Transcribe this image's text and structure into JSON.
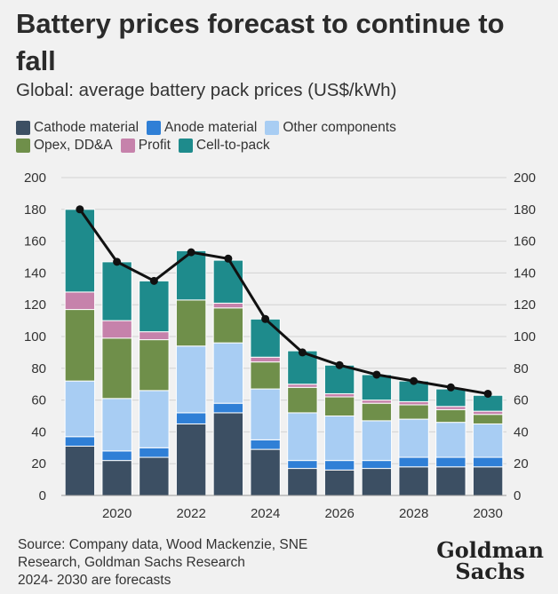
{
  "title": "Battery prices forecast to continue to fall",
  "subtitle": "Global: average battery pack prices (US$/kWh)",
  "legend": [
    {
      "label": "Cathode material",
      "color": "#3c4f63"
    },
    {
      "label": "Anode material",
      "color": "#2f7fd6"
    },
    {
      "label": "Other components",
      "color": "#a8cdf3"
    },
    {
      "label": "Opex, DD&A",
      "color": "#6f8f4a"
    },
    {
      "label": "Profit",
      "color": "#c682ab"
    },
    {
      "label": "Cell-to-pack",
      "color": "#1e8b8c"
    }
  ],
  "chart_data": {
    "type": "bar",
    "stacked": true,
    "x": [
      2019,
      2020,
      2021,
      2022,
      2023,
      2024,
      2025,
      2026,
      2027,
      2028,
      2029,
      2030
    ],
    "x_tick_labels": [
      "2020",
      "2022",
      "2024",
      "2026",
      "2028",
      "2030"
    ],
    "ylim": [
      0,
      200
    ],
    "y_ticks": [
      "0",
      "20",
      "40",
      "60",
      "80",
      "100",
      "120",
      "140",
      "160",
      "180",
      "200"
    ],
    "grid": true,
    "dual_y_axis": true,
    "series": [
      {
        "name": "Cathode material",
        "color": "#3c4f63",
        "values": [
          31,
          22,
          24,
          45,
          52,
          29,
          17,
          16,
          17,
          18,
          18,
          18
        ]
      },
      {
        "name": "Anode material",
        "color": "#2f7fd6",
        "values": [
          6,
          6,
          6,
          7,
          6,
          6,
          5,
          6,
          5,
          6,
          6,
          6
        ]
      },
      {
        "name": "Other components",
        "color": "#a8cdf3",
        "values": [
          35,
          33,
          36,
          42,
          38,
          32,
          30,
          28,
          25,
          24,
          22,
          21
        ]
      },
      {
        "name": "Opex, DD&A",
        "color": "#6f8f4a",
        "values": [
          45,
          38,
          32,
          29,
          22,
          17,
          16,
          12,
          11,
          9,
          8,
          6
        ]
      },
      {
        "name": "Profit",
        "color": "#c682ab",
        "values": [
          11,
          11,
          5,
          0,
          3,
          3,
          2,
          2,
          2,
          2,
          2,
          2
        ]
      },
      {
        "name": "Cell-to-pack",
        "color": "#1e8b8c",
        "values": [
          52,
          37,
          32,
          31,
          27,
          24,
          21,
          18,
          16,
          13,
          11,
          10
        ]
      }
    ],
    "line": {
      "values": [
        180,
        147,
        135,
        153,
        149,
        111,
        90,
        82,
        76,
        72,
        68,
        64
      ],
      "color": "#111111"
    }
  },
  "source": {
    "lines": [
      "Source: Company data, Wood Mackenzie, SNE",
      "Research, Goldman Sachs Research",
      "2024- 2030 are forecasts"
    ]
  },
  "logo": {
    "line1": "Goldman",
    "line2": "Sachs"
  }
}
